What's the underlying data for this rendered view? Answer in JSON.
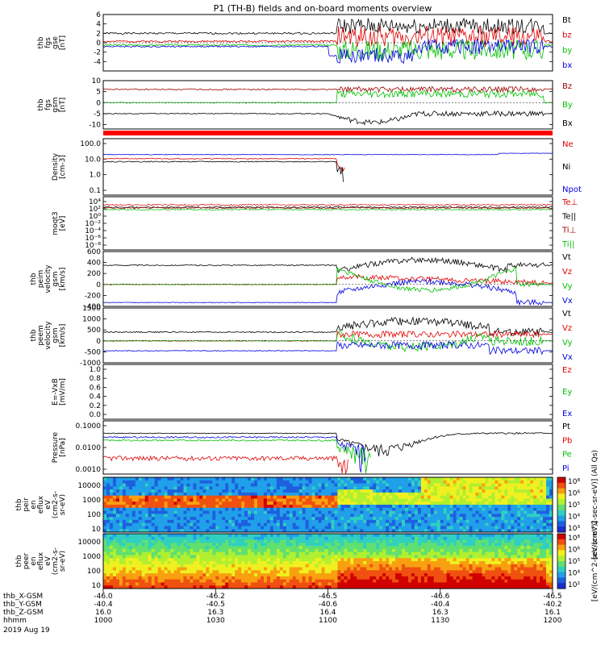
{
  "title": "P1 (TH-B) fields and on-board moments overview",
  "colors": {
    "black": "#000000",
    "red": "#e00000",
    "green": "#00c000",
    "blue": "#0000e0",
    "dark_red": "#a00000",
    "status_red": "#ff0000"
  },
  "chart_data": [
    {
      "type": "line",
      "ylabel": [
        "thb",
        "fgs",
        "gse",
        "[nT]"
      ],
      "ylim": [
        -6,
        6
      ],
      "yticks": [
        6,
        4,
        2,
        0,
        -2,
        -4
      ],
      "series": [
        {
          "name": "Bt",
          "color": "black"
        },
        {
          "name": "bz",
          "color": "red"
        },
        {
          "name": "by",
          "color": "green"
        },
        {
          "name": "bx",
          "color": "blue"
        }
      ]
    },
    {
      "type": "line",
      "ylabel": [
        "thb",
        "fgs",
        "gsm",
        "[nT]"
      ],
      "ylim": [
        -12,
        10
      ],
      "yticks": [
        10,
        5,
        0,
        -5,
        -10
      ],
      "series": [
        {
          "name": "Bz",
          "color": "dark_red"
        },
        {
          "name": "By",
          "color": "green"
        },
        {
          "name": "Bx",
          "color": "black"
        }
      ]
    },
    {
      "type": "line",
      "ylabel": [
        "Density",
        "[cm-3]"
      ],
      "ylim": [
        0.02,
        300
      ],
      "yscale": "log",
      "yticks": [
        "100.0",
        "10.0",
        "1.0",
        "0.1"
      ],
      "series": [
        {
          "name": "Ne",
          "color": "red"
        },
        {
          "name": "Ni",
          "color": "black"
        },
        {
          "name": "Npot",
          "color": "blue"
        }
      ]
    },
    {
      "type": "line",
      "ylabel": [
        "moqt3",
        "[eV]"
      ],
      "yscale": "log",
      "yticks": [
        "10⁴",
        "10²",
        "10⁰",
        "10⁻²",
        "10⁻⁴",
        "10⁻⁶",
        "10⁻⁸"
      ],
      "series": [
        {
          "name": "Te⊥",
          "color": "red"
        },
        {
          "name": "Te||",
          "color": "black"
        },
        {
          "name": "Ti⊥",
          "color": "dark_red"
        },
        {
          "name": "Ti||",
          "color": "green"
        }
      ]
    },
    {
      "type": "line",
      "ylabel": [
        "thb",
        "peim",
        "velocity",
        "gsm",
        "[km/s]"
      ],
      "ylim": [
        -400,
        600
      ],
      "yticks": [
        600,
        400,
        200,
        0,
        -200,
        -400
      ],
      "series": [
        {
          "name": "Vt",
          "color": "black"
        },
        {
          "name": "Vz",
          "color": "red"
        },
        {
          "name": "Vy",
          "color": "green"
        },
        {
          "name": "Vx",
          "color": "blue"
        }
      ]
    },
    {
      "type": "line",
      "ylabel": [
        "thb",
        "peem",
        "velocity",
        "gsm",
        "[km/s]"
      ],
      "ylim": [
        -1000,
        1500
      ],
      "yticks": [
        1500,
        1000,
        500,
        0,
        -500,
        -1000
      ],
      "series": [
        {
          "name": "Vt",
          "color": "black"
        },
        {
          "name": "Vz",
          "color": "red"
        },
        {
          "name": "Vy",
          "color": "green"
        },
        {
          "name": "Vx",
          "color": "blue"
        }
      ]
    },
    {
      "type": "line",
      "ylabel": [
        "E=-VxB",
        "[mV/m]"
      ],
      "ylim": [
        0.0,
        1.0
      ],
      "yticks": [
        "1.0",
        "0.8",
        "0.6",
        "0.4",
        "0.2",
        "0.0"
      ],
      "series": [
        {
          "name": "Ez",
          "color": "red"
        },
        {
          "name": "Ey",
          "color": "green"
        },
        {
          "name": "Ex",
          "color": "blue"
        }
      ]
    },
    {
      "type": "line",
      "ylabel": [
        "Pressure",
        "[nPa]"
      ],
      "yscale": "log",
      "yticks": [
        "0.1000",
        "0.0100",
        "0.0010"
      ],
      "series": [
        {
          "name": "Pt",
          "color": "black"
        },
        {
          "name": "Pb",
          "color": "red"
        },
        {
          "name": "Pe",
          "color": "green"
        },
        {
          "name": "Pi",
          "color": "blue"
        }
      ]
    },
    {
      "type": "heatmap",
      "ylabel": [
        "thb",
        "peir",
        "en",
        "eflux",
        "eV",
        "(cm2-s-",
        "sr-eV)"
      ],
      "yscale": "log",
      "yticks": [
        "10000",
        "1000",
        "100",
        "10"
      ]
    },
    {
      "type": "heatmap",
      "ylabel": [
        "thb",
        "peer",
        "en",
        "eflux",
        "eV",
        "(cm2-s-",
        "sr-eV)"
      ],
      "yscale": "log",
      "yticks": [
        "10000",
        "1000",
        "100",
        "10"
      ]
    }
  ],
  "colorbar": {
    "ticks": [
      "10⁸",
      "10⁶",
      "10⁵",
      "10⁴",
      "10³"
    ],
    "ticks2": [
      "10⁸",
      "10⁶",
      "10⁵",
      "10⁴",
      "10²"
    ],
    "label": "[eV/(cm^2-sec-sr-eV)] (All Qs)",
    "label2": "[eV/(cm^2-sec-sr-eV)]"
  },
  "xaxis": {
    "rows": [
      {
        "label": "thb_X-GSM",
        "values": [
          "-46.0",
          "-46.2",
          "-46.5",
          "-46.6",
          "-46.5"
        ]
      },
      {
        "label": "thb_Y-GSM",
        "values": [
          "-40.4",
          "-40.5",
          "-40.6",
          "-40.4",
          "-40.2"
        ]
      },
      {
        "label": "thb_Z-GSM",
        "values": [
          "16.0",
          "16.3",
          "16.4",
          "16.3",
          "16.1"
        ]
      },
      {
        "label": "hhmm",
        "values": [
          "1000",
          "1030",
          "1100",
          "1130",
          "1200"
        ]
      }
    ],
    "date": "2019 Aug 19"
  }
}
